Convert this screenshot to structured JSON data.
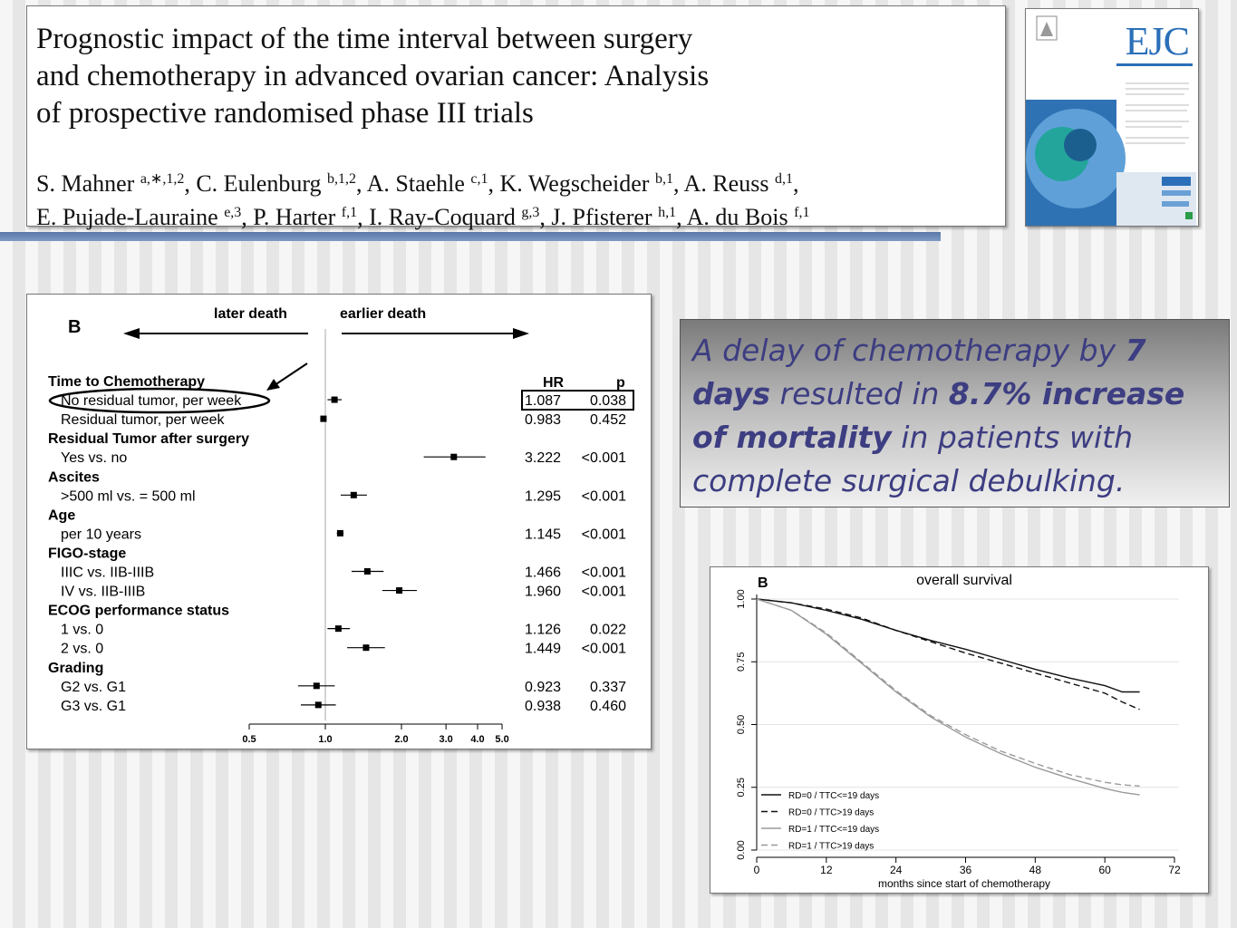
{
  "paper": {
    "title": "Prognostic impact of the time interval between surgery and chemotherapy in advanced ovarian cancer: Analysis of prospective randomised phase III trials",
    "title_lines": [
      "Prognostic impact of the time interval between surgery",
      "and chemotherapy in advanced ovarian cancer: Analysis",
      "of prospective randomised phase III trials"
    ],
    "authors": [
      {
        "name": "S. Mahner",
        "aff": "a,∗,1,2",
        "sep": ", "
      },
      {
        "name": "C. Eulenburg",
        "aff": "b,1,2",
        "sep": ", "
      },
      {
        "name": "A. Staehle",
        "aff": "c,1",
        "sep": ", "
      },
      {
        "name": "K. Wegscheider",
        "aff": "b,1",
        "sep": ", "
      },
      {
        "name": "A. Reuss",
        "aff": "d,1",
        "sep": ","
      },
      {
        "name": "E. Pujade-Lauraine",
        "aff": "e,3",
        "sep": ", "
      },
      {
        "name": "P. Harter",
        "aff": "f,1",
        "sep": ", "
      },
      {
        "name": "I. Ray-Coquard",
        "aff": "g,3",
        "sep": ", "
      },
      {
        "name": "J. Pfisterer",
        "aff": "h,1",
        "sep": ", "
      },
      {
        "name": "A. du Bois",
        "aff": "f,1",
        "sep": ""
      }
    ]
  },
  "journal_cover": {
    "logo": "EJC"
  },
  "callout": {
    "p1": "A delay of chemotherapy by ",
    "b1": "7 days",
    "p2": " resulted in ",
    "b2": "8.7% increase of mortality",
    "p3": " in patients with complete surgical debulking."
  },
  "chart_data": [
    {
      "type": "forest",
      "panel_label": "B",
      "direction_left": "later death",
      "direction_right": "earlier death",
      "col_hr": "HR",
      "col_p": "p",
      "x_scale": "log",
      "x_ticks": [
        "0.5",
        "1.0",
        "2.0",
        "3.0",
        "4.0",
        "5.0"
      ],
      "x_tick_values": [
        0.5,
        1.0,
        2.0,
        3.0,
        4.0,
        5.0
      ],
      "highlight_row": 0,
      "rows": [
        {
          "group": "Time to Chemotherapy"
        },
        {
          "label": "No residual tumor, per week",
          "hr": 1.087,
          "lo": 1.02,
          "hi": 1.16,
          "hr_text": "1.087",
          "p_text": "0.038",
          "highlight": true
        },
        {
          "label": "Residual tumor, per week",
          "hr": 0.983,
          "lo": 0.96,
          "hi": 1.01,
          "hr_text": "0.983",
          "p_text": "0.452"
        },
        {
          "group": "Residual Tumor after surgery"
        },
        {
          "label": "Yes vs. no",
          "hr": 3.222,
          "lo": 2.45,
          "hi": 4.3,
          "hr_text": "3.222",
          "p_text": "<0.001"
        },
        {
          "group": "Ascites"
        },
        {
          "label": ">500 ml vs. = 500 ml",
          "hr": 1.295,
          "lo": 1.15,
          "hi": 1.46,
          "hr_text": "1.295",
          "p_text": "<0.001"
        },
        {
          "group": "Age"
        },
        {
          "label": "per 10 years",
          "hr": 1.145,
          "lo": 1.11,
          "hi": 1.18,
          "hr_text": "1.145",
          "p_text": "<0.001"
        },
        {
          "group": "FIGO-stage"
        },
        {
          "label": "IIIC vs. IIB-IIIB",
          "hr": 1.466,
          "lo": 1.27,
          "hi": 1.7,
          "hr_text": "1.466",
          "p_text": "<0.001"
        },
        {
          "label": "IV vs. IIB-IIIB",
          "hr": 1.96,
          "lo": 1.68,
          "hi": 2.3,
          "hr_text": "1.960",
          "p_text": "<0.001"
        },
        {
          "group": "ECOG performance status"
        },
        {
          "label": "1 vs. 0",
          "hr": 1.126,
          "lo": 1.02,
          "hi": 1.25,
          "hr_text": "1.126",
          "p_text": "0.022"
        },
        {
          "label": "2 vs. 0",
          "hr": 1.449,
          "lo": 1.22,
          "hi": 1.72,
          "hr_text": "1.449",
          "p_text": "<0.001"
        },
        {
          "group": "Grading"
        },
        {
          "label": "G2 vs. G1",
          "hr": 0.923,
          "lo": 0.78,
          "hi": 1.09,
          "hr_text": "0.923",
          "p_text": "0.337"
        },
        {
          "label": "G3 vs. G1",
          "hr": 0.938,
          "lo": 0.8,
          "hi": 1.1,
          "hr_text": "0.938",
          "p_text": "0.460"
        }
      ]
    },
    {
      "type": "line",
      "panel_label": "B",
      "title": "overall survival",
      "xlabel": "months since start of chemotherapy",
      "ylabel": "",
      "xlim": [
        0,
        72
      ],
      "ylim": [
        0,
        1
      ],
      "x_ticks": [
        0,
        12,
        24,
        36,
        48,
        60,
        72
      ],
      "y_ticks": [
        "0.00",
        "0.25",
        "0.50",
        "0.75",
        "1.00"
      ],
      "y_tick_values": [
        0,
        0.25,
        0.5,
        0.75,
        1.0
      ],
      "grid": "horizontal",
      "legend_position": "bottom-left",
      "series": [
        {
          "name": "RD=0 / TTC<=19 days",
          "color": "#111111",
          "dash": "solid",
          "x": [
            0,
            6,
            12,
            18,
            24,
            30,
            36,
            42,
            48,
            54,
            60,
            63,
            66
          ],
          "y": [
            1.0,
            0.985,
            0.955,
            0.92,
            0.875,
            0.835,
            0.8,
            0.76,
            0.72,
            0.685,
            0.655,
            0.63,
            0.63
          ]
        },
        {
          "name": "RD=0 / TTC>19 days",
          "color": "#111111",
          "dash": "dashed",
          "x": [
            0,
            6,
            12,
            18,
            24,
            30,
            36,
            42,
            48,
            54,
            60,
            63,
            66
          ],
          "y": [
            1.0,
            0.985,
            0.96,
            0.925,
            0.875,
            0.83,
            0.785,
            0.745,
            0.705,
            0.665,
            0.625,
            0.59,
            0.56
          ]
        },
        {
          "name": "RD=1 / TTC<=19 days",
          "color": "#9a9a9a",
          "dash": "solid",
          "x": [
            0,
            6,
            12,
            18,
            24,
            30,
            36,
            42,
            48,
            54,
            60,
            63,
            66
          ],
          "y": [
            1.0,
            0.955,
            0.86,
            0.745,
            0.63,
            0.53,
            0.45,
            0.385,
            0.33,
            0.285,
            0.245,
            0.23,
            0.22
          ]
        },
        {
          "name": "RD=1 / TTC>19 days",
          "color": "#9a9a9a",
          "dash": "dashed",
          "x": [
            0,
            6,
            12,
            18,
            24,
            30,
            36,
            42,
            48,
            54,
            60,
            63,
            66
          ],
          "y": [
            1.0,
            0.955,
            0.865,
            0.75,
            0.635,
            0.535,
            0.46,
            0.395,
            0.345,
            0.3,
            0.27,
            0.26,
            0.255
          ]
        }
      ]
    }
  ]
}
